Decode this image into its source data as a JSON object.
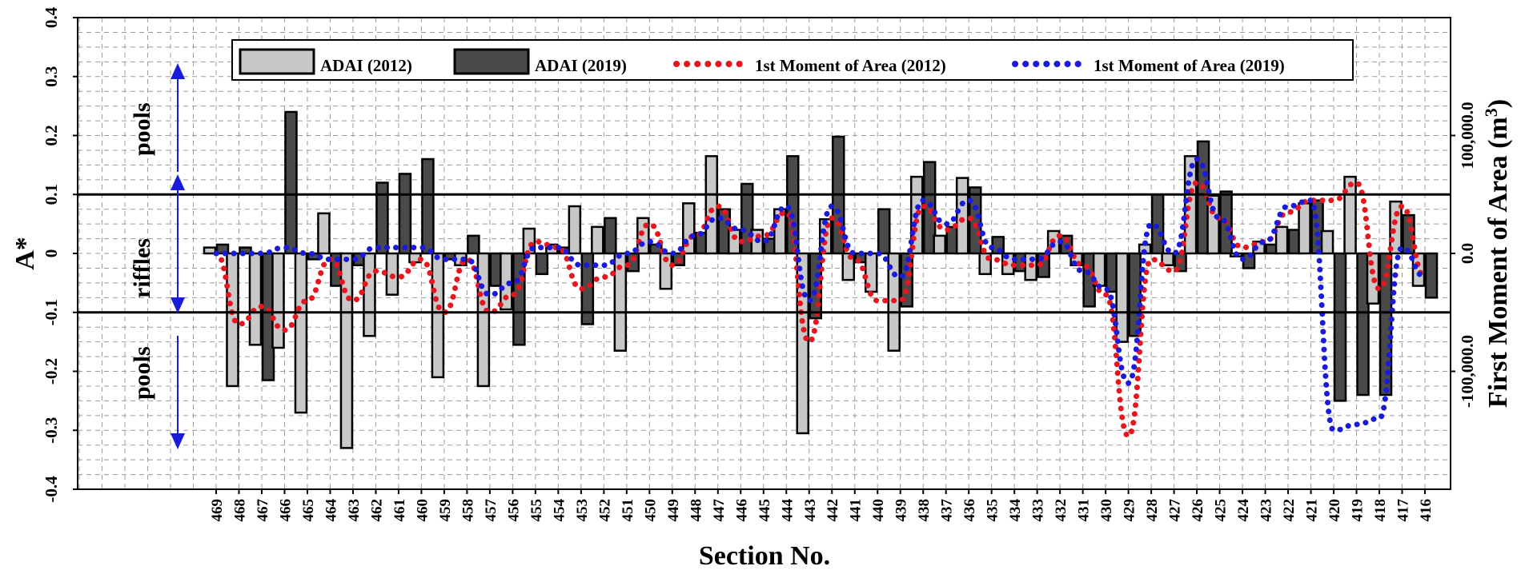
{
  "chart_data": {
    "type": "bar",
    "xlabel": "Section No.",
    "ylabel": "A*",
    "y2label": "First Moment of Area (m",
    "y2label_sup": "3",
    "y2label_close": ")",
    "ylim": [
      -0.4,
      0.4
    ],
    "yticks": [
      "-0.4",
      "-0.3",
      "-0.2",
      "-0.1",
      "0",
      "0.1",
      "0.2",
      "0.3",
      "0.4"
    ],
    "y2lim": [
      -200000,
      200000
    ],
    "y2ticks": [
      {
        "value": 100000,
        "label": "100,000.0"
      },
      {
        "value": 0,
        "label": "0.0"
      },
      {
        "value": -100000,
        "label": "-100,000.0"
      }
    ],
    "grid": true,
    "threshold_lines": [
      0.1,
      -0.1
    ],
    "legend_position": "top",
    "categories": [
      "469",
      "468",
      "467",
      "466",
      "465",
      "464",
      "463",
      "462",
      "461",
      "460",
      "459",
      "458",
      "457",
      "456",
      "455",
      "454",
      "453",
      "452",
      "451",
      "450",
      "449",
      "448",
      "447",
      "446",
      "445",
      "444",
      "443",
      "442",
      "441",
      "440",
      "439",
      "438",
      "437",
      "436",
      "435",
      "434",
      "433",
      "432",
      "431",
      "430",
      "429",
      "428",
      "427",
      "426",
      "425",
      "424",
      "423",
      "422",
      "421",
      "420",
      "419",
      "418",
      "417",
      "416"
    ],
    "series": [
      {
        "name": "ADAI (2012)",
        "kind": "bar",
        "color": "#c8c8c8",
        "values": [
          0.01,
          -0.225,
          -0.155,
          -0.16,
          -0.27,
          0.068,
          -0.33,
          -0.14,
          -0.07,
          -0.015,
          -0.21,
          -0.02,
          -0.225,
          -0.095,
          0.042,
          0.015,
          0.08,
          0.045,
          -0.165,
          0.06,
          -0.06,
          0.085,
          0.165,
          0.04,
          0.04,
          0.075,
          -0.305,
          0.058,
          -0.045,
          -0.065,
          -0.165,
          0.13,
          0.03,
          0.128,
          -0.035,
          -0.035,
          -0.045,
          0.038,
          -0.02,
          -0.055,
          -0.15,
          0.015,
          -0.02,
          0.165,
          0.098,
          -0.005,
          0.02,
          0.045,
          0.085,
          0.038,
          0.13,
          -0.085,
          0.088,
          -0.055
        ]
      },
      {
        "name": "ADAI (2019)",
        "kind": "bar",
        "color": "#4a4a4a",
        "values": [
          0.015,
          0.01,
          -0.215,
          0.24,
          -0.01,
          -0.055,
          -0.02,
          0.12,
          0.135,
          0.16,
          -0.01,
          0.03,
          -0.055,
          -0.155,
          -0.035,
          0.01,
          -0.12,
          0.06,
          -0.03,
          0.015,
          -0.02,
          0.035,
          0.075,
          0.118,
          0.025,
          0.165,
          -0.11,
          0.198,
          -0.015,
          0.075,
          -0.09,
          0.155,
          0.045,
          0.112,
          0.028,
          -0.03,
          -0.04,
          0.03,
          -0.09,
          -0.065,
          -0.14,
          0.1,
          -0.03,
          0.19,
          0.105,
          -0.025,
          0.015,
          0.04,
          0.09,
          -0.25,
          -0.24,
          -0.24,
          0.065,
          -0.075
        ]
      },
      {
        "name": "1st Moment of Area (2012)",
        "kind": "line",
        "color": "#e8141e",
        "values": [
          0,
          -60000,
          -45000,
          -65000,
          -40000,
          -5000,
          -40000,
          -15000,
          -20000,
          -5000,
          -50000,
          -5000,
          -50000,
          -35000,
          10000,
          5000,
          -30000,
          -20000,
          -10000,
          25000,
          -10000,
          15000,
          40000,
          10000,
          15000,
          35000,
          -75000,
          30000,
          -5000,
          -40000,
          -40000,
          40000,
          20000,
          30000,
          -5000,
          -10000,
          -10000,
          15000,
          -10000,
          -35000,
          -155000,
          -5000,
          -15000,
          60000,
          30000,
          5000,
          10000,
          35000,
          45000,
          45000,
          60000,
          -30000,
          40000,
          -20000
        ]
      },
      {
        "name": "1st Moment of Area (2019)",
        "kind": "line",
        "color": "#1a1adc",
        "values": [
          0,
          0,
          0,
          5000,
          0,
          -5000,
          -5000,
          5000,
          5000,
          5000,
          -5000,
          -5000,
          -35000,
          -25000,
          5000,
          5000,
          -10000,
          -10000,
          0,
          10000,
          0,
          15000,
          30000,
          20000,
          10000,
          40000,
          -40000,
          40000,
          0,
          0,
          -20000,
          45000,
          25000,
          45000,
          5000,
          -5000,
          -5000,
          10000,
          -15000,
          -30000,
          -110000,
          25000,
          0,
          80000,
          30000,
          -5000,
          10000,
          40000,
          45000,
          -150000,
          -145000,
          -140000,
          5000,
          -20000
        ]
      }
    ]
  },
  "annotations": {
    "pools_top": "pools",
    "riffles": "riffles",
    "pools_bottom": "pools"
  }
}
